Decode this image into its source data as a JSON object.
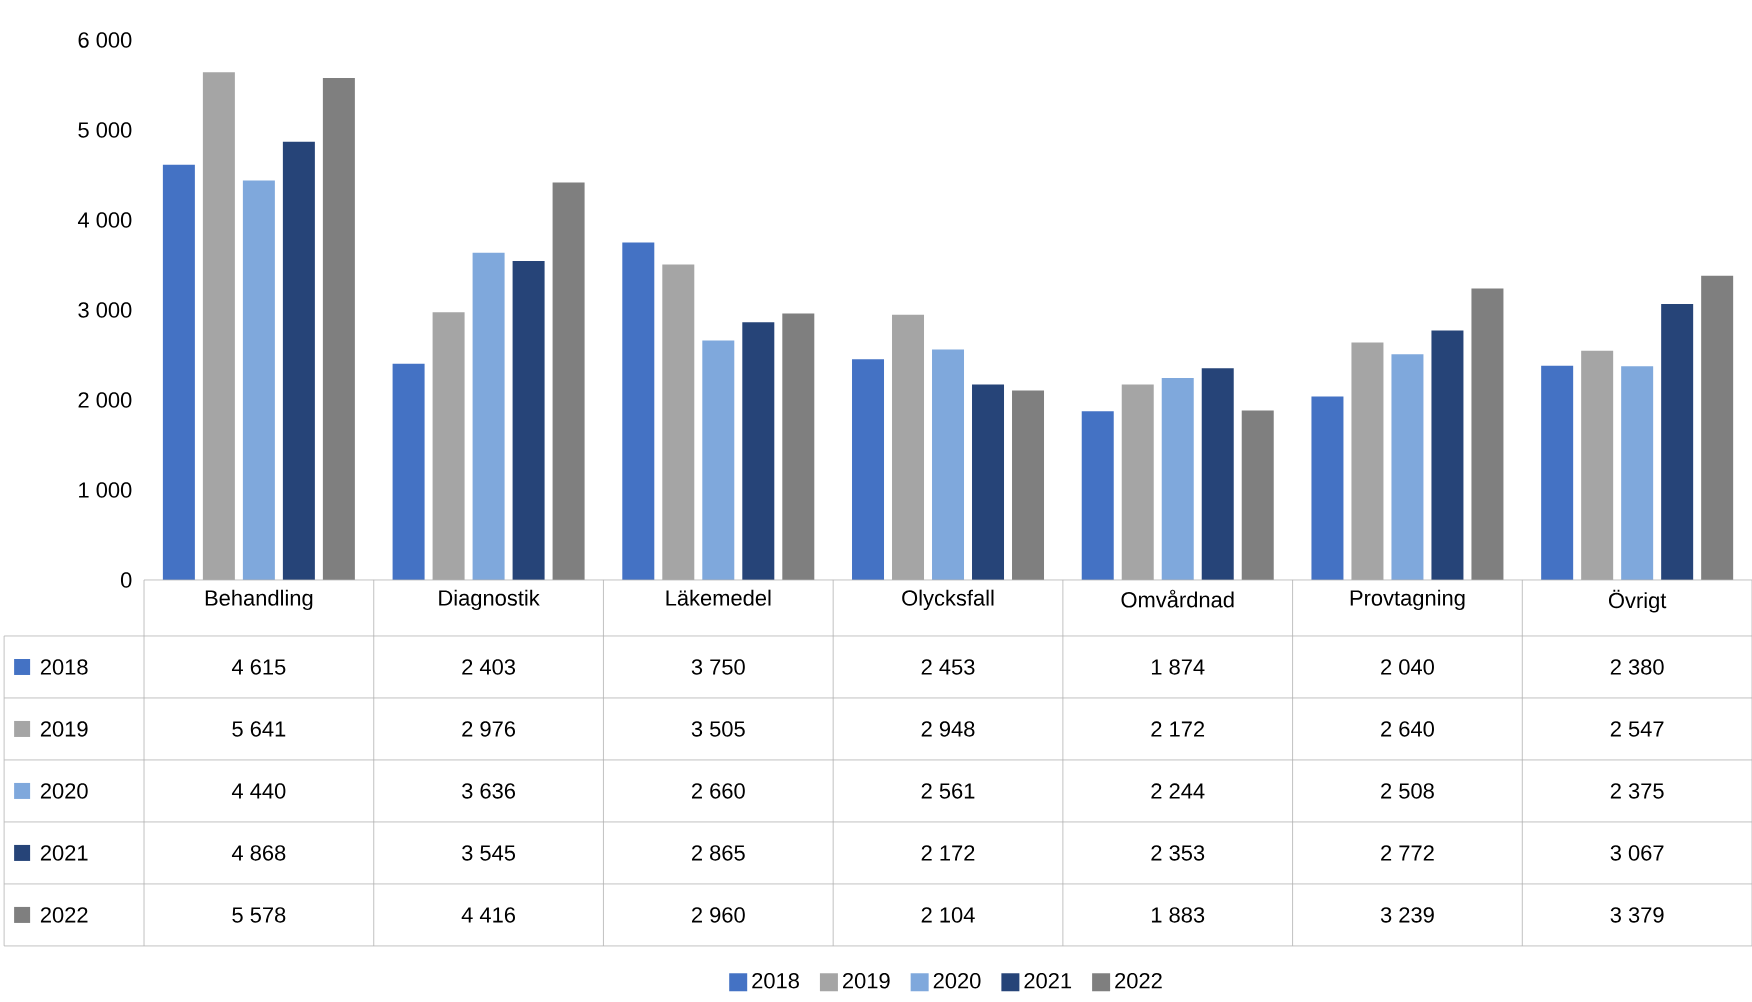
{
  "chart_data": {
    "type": "bar",
    "categories": [
      "Behandling",
      "Diagnostik",
      "Läkemedel",
      "Olycksfall",
      "Omvårdnad",
      "Provtagning",
      "Övrigt"
    ],
    "series": [
      {
        "name": "2018",
        "color": "#4472c4",
        "values": [
          4615,
          2403,
          3750,
          2453,
          1874,
          2040,
          2380
        ],
        "value_labels": [
          "4 615",
          "2 403",
          "3 750",
          "2 453",
          "1 874",
          "2 040",
          "2 380"
        ]
      },
      {
        "name": "2019",
        "color": "#a5a5a5",
        "values": [
          5641,
          2976,
          3505,
          2948,
          2172,
          2640,
          2547
        ],
        "value_labels": [
          "5 641",
          "2 976",
          "3 505",
          "2 948",
          "2 172",
          "2 640",
          "2 547"
        ]
      },
      {
        "name": "2020",
        "color": "#7fa8dc",
        "values": [
          4440,
          3636,
          2660,
          2561,
          2244,
          2508,
          2375
        ],
        "value_labels": [
          "4 440",
          "3 636",
          "2 660",
          "2 561",
          "2 244",
          "2 508",
          "2 375"
        ]
      },
      {
        "name": "2021",
        "color": "#264478",
        "values": [
          4868,
          3545,
          2865,
          2172,
          2353,
          2772,
          3067
        ],
        "value_labels": [
          "4 868",
          "3 545",
          "2 865",
          "2 172",
          "2 353",
          "2 772",
          "3 067"
        ]
      },
      {
        "name": "2022",
        "color": "#7f7f7f",
        "values": [
          5578,
          4416,
          2960,
          2104,
          1883,
          3239,
          3379
        ],
        "value_labels": [
          "5 578",
          "4 416",
          "2 960",
          "2 104",
          "1 883",
          "3 239",
          "3 379"
        ]
      }
    ],
    "ylim": [
      0,
      6000
    ],
    "yticks": [
      0,
      {
        "value": 1000,
        "label": "1 000"
      },
      {
        "value": 2000,
        "label": "2 000"
      },
      {
        "value": 3000,
        "label": "3 000"
      },
      {
        "value": 4000,
        "label": "4 000"
      },
      {
        "value": 5000,
        "label": "5 000"
      },
      {
        "value": 6000,
        "label": "6 000"
      }
    ],
    "legend": "bottom"
  }
}
